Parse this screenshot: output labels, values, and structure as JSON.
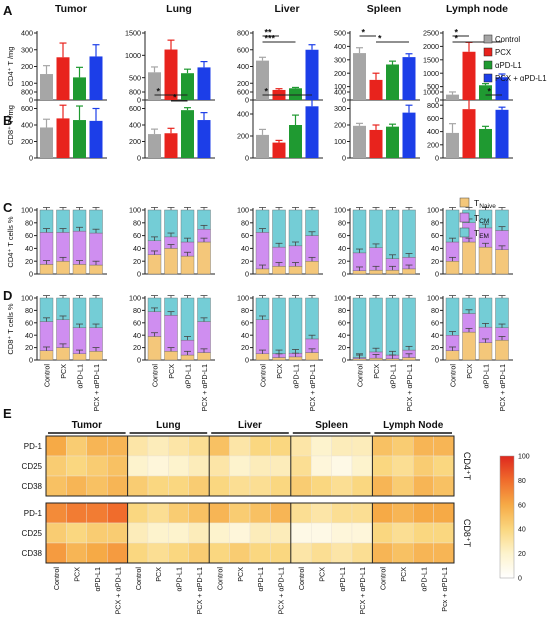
{
  "panel_letters": [
    "A",
    "B",
    "C",
    "D",
    "E"
  ],
  "organs": [
    "Tumor",
    "Lung",
    "Liver",
    "Spleen",
    "Lymph node"
  ],
  "groups": [
    "Control",
    "PCX",
    "αPD-L1",
    "PCX + αPD-L1"
  ],
  "colors": {
    "Control": "#a6a6a6",
    "PCX": "#e8231d",
    "αPD-L1": "#1f9a31",
    "PCX + αPD-L1": "#1c3ee8",
    "naive": "#f4c77a",
    "cm": "#cf8ef0",
    "em": "#74cdd6"
  },
  "legend_A": [
    "Control",
    "PCX",
    "αPD-L1",
    "PCX + αPD-L1"
  ],
  "legend_C": [
    {
      "main": "T",
      "sub": "Naive"
    },
    {
      "main": "T",
      "sub": "CM"
    },
    {
      "main": "T",
      "sub": "EM"
    }
  ],
  "ylabels": {
    "A": "CD4⁺ T /mg",
    "B": "CD8⁺ T /mg",
    "C": "CD4⁺ T cells %",
    "D": "CD8⁺ T cells %"
  },
  "heatmap_side_labels": [
    "CD4⁺T",
    "CD8⁺T"
  ],
  "chart_data": [
    {
      "panel": "A",
      "type": "bar",
      "ylabel": "CD4⁺ T /mg",
      "categories": [
        "Control",
        "PCX",
        "αPD-L1",
        "PCX + αPD-L1"
      ],
      "subplots": [
        {
          "organ": "Tumor",
          "ylim": [
            0,
            400
          ],
          "yticks": [
            0,
            100,
            200,
            300,
            400
          ],
          "values": [
            155,
            255,
            135,
            260
          ],
          "errors": [
            50,
            85,
            60,
            70
          ],
          "sig": []
        },
        {
          "organ": "Lung",
          "ylim": [
            0,
            1500
          ],
          "yticks": [
            0,
            500,
            1000,
            1500
          ],
          "values": [
            620,
            1130,
            600,
            730
          ],
          "errors": [
            120,
            210,
            90,
            130
          ],
          "sig": []
        },
        {
          "organ": "Liver",
          "ylim": [
            0,
            800
          ],
          "yticks": [
            0,
            200,
            400,
            600,
            800
          ],
          "values": [
            470,
            120,
            140,
            600
          ],
          "errors": [
            40,
            15,
            10,
            60
          ],
          "sig": [
            {
              "label": "**",
              "from": 0,
              "to": 1
            },
            {
              "label": "***",
              "from": 0,
              "to": 2
            }
          ]
        },
        {
          "organ": "Spleen",
          "ylim": [
            0,
            500
          ],
          "yticks": [
            0,
            100,
            200,
            300,
            400,
            500
          ],
          "values": [
            350,
            150,
            265,
            320
          ],
          "errors": [
            40,
            50,
            25,
            25
          ],
          "sig": [
            {
              "label": "*",
              "from": 0,
              "to": 1
            },
            {
              "label": "*",
              "from": 1,
              "to": 3
            }
          ]
        },
        {
          "organ": "Lymph node",
          "ylim": [
            0,
            2500
          ],
          "yticks": [
            0,
            500,
            1000,
            1500,
            2000,
            2500
          ],
          "values": [
            200,
            1800,
            550,
            850
          ],
          "errors": [
            100,
            350,
            60,
            120
          ],
          "sig": [
            {
              "label": "*",
              "from": 0,
              "to": 1
            },
            {
              "label": "*",
              "from": 0,
              "to": 3
            }
          ]
        }
      ]
    },
    {
      "panel": "B",
      "type": "bar",
      "ylabel": "CD8⁺ T /mg",
      "categories": [
        "Control",
        "PCX",
        "αPD-L1",
        "PCX + αPD-L1"
      ],
      "subplots": [
        {
          "organ": "Tumor",
          "ylim": [
            0,
            800
          ],
          "yticks": [
            0,
            200,
            400,
            600,
            800
          ],
          "values": [
            370,
            480,
            460,
            450
          ],
          "errors": [
            100,
            160,
            170,
            150
          ],
          "sig": []
        },
        {
          "organ": "Lung",
          "ylim": [
            0,
            800
          ],
          "yticks": [
            0,
            200,
            400,
            600,
            800
          ],
          "values": [
            290,
            300,
            580,
            460
          ],
          "errors": [
            60,
            60,
            30,
            90
          ],
          "sig": [
            {
              "label": "*",
              "from": 0,
              "to": 2
            },
            {
              "label": "*",
              "from": 1,
              "to": 2
            }
          ]
        },
        {
          "organ": "Liver",
          "ylim": [
            0,
            600
          ],
          "yticks": [
            0,
            200,
            400,
            600
          ],
          "values": [
            210,
            140,
            300,
            470
          ],
          "errors": [
            50,
            20,
            90,
            70
          ],
          "sig": [
            {
              "label": "*",
              "from": 0,
              "to": 3
            }
          ]
        },
        {
          "organ": "Spleen",
          "ylim": [
            0,
            400
          ],
          "yticks": [
            0,
            100,
            200,
            300,
            400
          ],
          "values": [
            195,
            170,
            190,
            275
          ],
          "errors": [
            15,
            30,
            15,
            45
          ],
          "sig": []
        },
        {
          "organ": "Lymph node",
          "ylim": [
            0,
            1000
          ],
          "yticks": [
            0,
            200,
            400,
            600,
            800,
            1000
          ],
          "values": [
            380,
            740,
            440,
            730
          ],
          "errors": [
            140,
            190,
            40,
            40
          ],
          "sig": [
            {
              "label": "*",
              "from": 2,
              "to": 3
            }
          ]
        }
      ]
    },
    {
      "panel": "C",
      "type": "stacked-bar",
      "ylabel": "CD4⁺ T cells %",
      "ylim": [
        0,
        100
      ],
      "yticks": [
        0,
        20,
        40,
        60,
        80,
        100
      ],
      "categories": [
        "Control",
        "PCX",
        "αPD-L1",
        "PCX + αPD-L1"
      ],
      "subplots": [
        {
          "organ": "Tumor",
          "naive": [
            15,
            20,
            15,
            14
          ],
          "cm": [
            50,
            45,
            52,
            50
          ],
          "em": [
            35,
            35,
            33,
            36
          ]
        },
        {
          "organ": "Lung",
          "naive": [
            30,
            40,
            28,
            50
          ],
          "cm": [
            22,
            18,
            22,
            20
          ],
          "em": [
            48,
            42,
            50,
            30
          ]
        },
        {
          "organ": "Liver",
          "naive": [
            8,
            12,
            12,
            20
          ],
          "cm": [
            57,
            30,
            32,
            40
          ],
          "em": [
            35,
            58,
            56,
            40
          ]
        },
        {
          "organ": "Spleen",
          "naive": [
            5,
            6,
            6,
            8
          ],
          "cm": [
            28,
            35,
            18,
            18
          ],
          "em": [
            67,
            59,
            76,
            74
          ]
        },
        {
          "organ": "Lymph node",
          "naive": [
            20,
            50,
            42,
            38
          ],
          "cm": [
            30,
            30,
            30,
            30
          ],
          "em": [
            50,
            20,
            28,
            32
          ]
        }
      ]
    },
    {
      "panel": "D",
      "type": "stacked-bar",
      "ylabel": "CD8⁺ T cells %",
      "ylim": [
        0,
        100
      ],
      "yticks": [
        0,
        20,
        40,
        60,
        80,
        100
      ],
      "categories": [
        "Control",
        "PCX",
        "αPD-L1",
        "PCX + αPD-L1"
      ],
      "subplots": [
        {
          "organ": "Tumor",
          "naive": [
            15,
            20,
            10,
            14
          ],
          "cm": [
            47,
            45,
            42,
            38
          ],
          "em": [
            38,
            35,
            48,
            48
          ]
        },
        {
          "organ": "Lung",
          "naive": [
            38,
            14,
            8,
            12
          ],
          "cm": [
            40,
            58,
            24,
            50
          ],
          "em": [
            22,
            28,
            68,
            38
          ]
        },
        {
          "organ": "Liver",
          "naive": [
            10,
            4,
            5,
            12
          ],
          "cm": [
            55,
            6,
            6,
            22
          ],
          "em": [
            35,
            90,
            89,
            66
          ]
        },
        {
          "organ": "Spleen",
          "naive": [
            2,
            3,
            2,
            4
          ],
          "cm": [
            2,
            10,
            6,
            12
          ],
          "em": [
            96,
            87,
            92,
            84
          ]
        },
        {
          "organ": "Lymph node",
          "naive": [
            15,
            45,
            28,
            32
          ],
          "cm": [
            25,
            30,
            25,
            20
          ],
          "em": [
            60,
            25,
            47,
            48
          ]
        }
      ]
    },
    {
      "panel": "E",
      "type": "heatmap",
      "color_scale": [
        0,
        100
      ],
      "colorbar_ticks": [
        0,
        20,
        40,
        60,
        80,
        100
      ],
      "rows": [
        "PD-1",
        "CD25",
        "CD38",
        "PD-1",
        "CD25",
        "CD38"
      ],
      "row_groups": [
        "CD4⁺T",
        "CD4⁺T",
        "CD4⁺T",
        "CD8⁺T",
        "CD8⁺T",
        "CD8⁺T"
      ],
      "column_groups": [
        "Tumor",
        "Lung",
        "Liver",
        "Spleen",
        "Lymph Node"
      ],
      "columns": [
        "Control",
        "PCX",
        "αPD-L1",
        "PCX + αPD-L1",
        "Control",
        "PCX",
        "αPD-L1",
        "PCX + αPD-L1",
        "Control",
        "PCX",
        "αPD-L1",
        "PCX + αPD-L1",
        "Control",
        "PCX",
        "αPD-L1",
        "PCX + αPD-L1",
        "Control",
        "PCX",
        "αPD-L1",
        "Pcx + αPD-L1"
      ],
      "values": [
        [
          60,
          45,
          55,
          55,
          30,
          25,
          30,
          35,
          50,
          30,
          40,
          40,
          30,
          20,
          25,
          25,
          50,
          45,
          55,
          55
        ],
        [
          45,
          40,
          45,
          50,
          20,
          15,
          20,
          25,
          30,
          20,
          25,
          25,
          35,
          15,
          10,
          20,
          40,
          35,
          45,
          40
        ],
        [
          50,
          55,
          50,
          55,
          45,
          40,
          40,
          45,
          40,
          35,
          35,
          40,
          45,
          40,
          35,
          40,
          55,
          45,
          55,
          50
        ],
        [
          70,
          75,
          75,
          80,
          40,
          35,
          45,
          50,
          55,
          45,
          50,
          55,
          35,
          30,
          35,
          35,
          60,
          55,
          60,
          60
        ],
        [
          45,
          40,
          45,
          45,
          25,
          20,
          20,
          25,
          20,
          15,
          25,
          25,
          10,
          10,
          15,
          15,
          40,
          35,
          40,
          40
        ],
        [
          65,
          55,
          60,
          65,
          40,
          35,
          40,
          45,
          40,
          45,
          40,
          40,
          30,
          35,
          30,
          35,
          55,
          50,
          55,
          55
        ]
      ]
    }
  ]
}
